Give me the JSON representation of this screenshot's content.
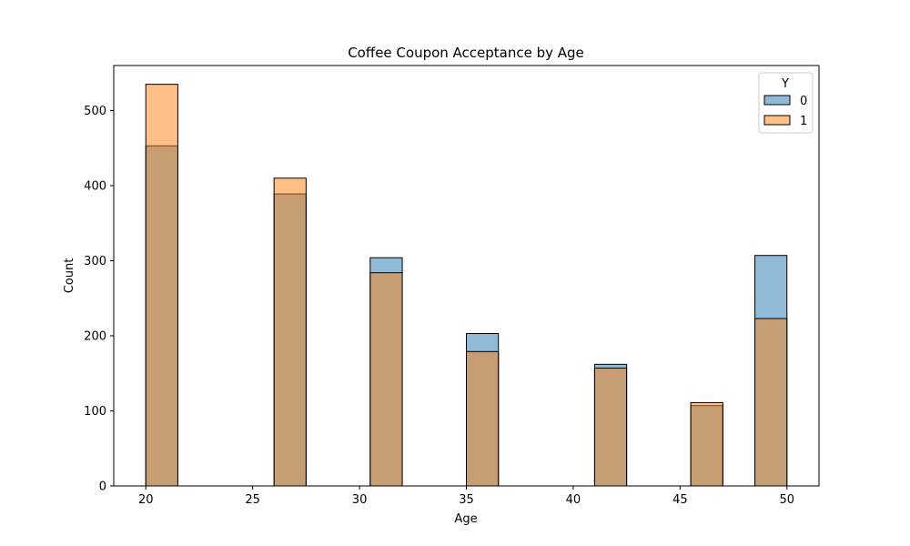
{
  "chart_data": {
    "type": "bar",
    "title": "Coffee Coupon Acceptance by Age",
    "xlabel": "Age",
    "ylabel": "Count",
    "xlim": [
      18.5,
      51.5
    ],
    "ylim": [
      0,
      560
    ],
    "xticks": [
      20,
      25,
      30,
      35,
      40,
      45,
      50
    ],
    "yticks": [
      0,
      100,
      200,
      300,
      400,
      500
    ],
    "grid": false,
    "legend": {
      "title": "Y",
      "placement": "top-right"
    },
    "bins": [
      {
        "x0": 20.0,
        "x1": 21.5
      },
      {
        "x0": 26.0,
        "x1": 27.5
      },
      {
        "x0": 30.5,
        "x1": 32.0
      },
      {
        "x0": 35.0,
        "x1": 36.5
      },
      {
        "x0": 41.0,
        "x1": 42.5
      },
      {
        "x0": 45.5,
        "x1": 47.0
      },
      {
        "x0": 48.5,
        "x1": 50.0
      }
    ],
    "series": [
      {
        "name": "0",
        "color": "#1f77b4",
        "values": [
          453,
          389,
          304,
          203,
          162,
          107,
          307
        ]
      },
      {
        "name": "1",
        "color": "#ff7f0e",
        "values": [
          535,
          410,
          284,
          179,
          157,
          111,
          223
        ]
      }
    ]
  }
}
